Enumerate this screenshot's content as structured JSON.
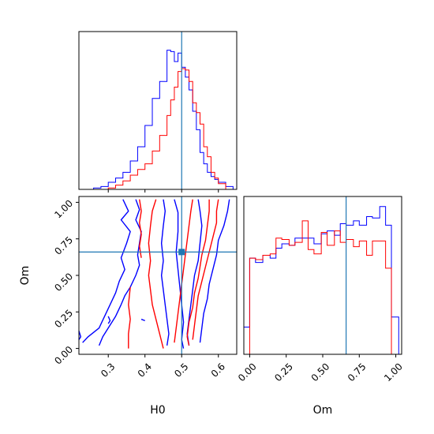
{
  "colors": {
    "series_a": "#0000ff",
    "series_b": "#ff0000",
    "truth": "#1f77b4",
    "frame": "#000000",
    "background": "#ffffff"
  },
  "chart_data": {
    "type": "corner",
    "parameters": [
      "H0",
      "Om"
    ],
    "truth": {
      "H0": 0.5,
      "Om": 0.66
    },
    "axes": {
      "H0": {
        "label": "H0",
        "lim": [
          0.22,
          0.65
        ],
        "ticks": [
          0.3,
          0.4,
          0.5,
          0.6
        ],
        "tick_labels": [
          "0.3",
          "0.4",
          "0.5",
          "0.6"
        ]
      },
      "Om": {
        "label": "Om",
        "lim": [
          -0.04,
          1.04
        ],
        "ticks": [
          0.0,
          0.25,
          0.5,
          0.75,
          1.0
        ],
        "tick_labels": [
          "0.00",
          "0.25",
          "0.50",
          "0.75",
          "1.00"
        ]
      }
    },
    "marginals": [
      {
        "parameter": "H0",
        "hist_ymax": 1.0,
        "series": [
          {
            "color_key": "series_a",
            "edges": [
              0.26,
              0.28,
              0.3,
              0.32,
              0.34,
              0.36,
              0.38,
              0.4,
              0.42,
              0.44,
              0.46,
              0.47,
              0.48,
              0.49,
              0.5,
              0.51,
              0.52,
              0.53,
              0.54,
              0.55,
              0.56,
              0.57,
              0.58,
              0.59,
              0.6,
              0.62,
              0.64
            ],
            "values": [
              0.01,
              0.02,
              0.05,
              0.08,
              0.12,
              0.2,
              0.3,
              0.45,
              0.64,
              0.76,
              0.98,
              0.97,
              0.9,
              0.96,
              0.86,
              0.79,
              0.7,
              0.55,
              0.42,
              0.26,
              0.18,
              0.12,
              0.09,
              0.07,
              0.05,
              0.02
            ]
          },
          {
            "color_key": "series_b",
            "edges": [
              0.3,
              0.32,
              0.34,
              0.36,
              0.38,
              0.4,
              0.42,
              0.44,
              0.46,
              0.47,
              0.48,
              0.49,
              0.5,
              0.51,
              0.52,
              0.53,
              0.54,
              0.55,
              0.56,
              0.57,
              0.58,
              0.59,
              0.6,
              0.62
            ],
            "values": [
              0.01,
              0.03,
              0.06,
              0.1,
              0.14,
              0.18,
              0.27,
              0.38,
              0.52,
              0.63,
              0.72,
              0.83,
              0.85,
              0.84,
              0.76,
              0.61,
              0.54,
              0.46,
              0.3,
              0.23,
              0.12,
              0.08,
              0.04
            ]
          }
        ]
      },
      {
        "parameter": "Om",
        "hist_ymax": 1.0,
        "series": [
          {
            "color_key": "series_a",
            "edges": [
              -0.04,
              0.0,
              0.04,
              0.09,
              0.14,
              0.18,
              0.22,
              0.27,
              0.31,
              0.36,
              0.4,
              0.44,
              0.49,
              0.53,
              0.58,
              0.62,
              0.66,
              0.71,
              0.75,
              0.8,
              0.84,
              0.89,
              0.93,
              0.97,
              1.02
            ],
            "values": [
              0.19,
              0.67,
              0.64,
              0.69,
              0.67,
              0.74,
              0.77,
              0.76,
              0.81,
              0.81,
              0.81,
              0.77,
              0.84,
              0.86,
              0.83,
              0.91,
              0.9,
              0.93,
              0.9,
              0.96,
              0.95,
              1.03,
              0.9,
              0.26
            ]
          },
          {
            "color_key": "series_b",
            "edges": [
              0.0,
              0.04,
              0.09,
              0.14,
              0.18,
              0.22,
              0.27,
              0.31,
              0.36,
              0.4,
              0.44,
              0.49,
              0.53,
              0.58,
              0.62,
              0.66,
              0.71,
              0.75,
              0.8,
              0.84,
              0.89,
              0.93,
              0.97
            ],
            "values": [
              0.67,
              0.66,
              0.69,
              0.7,
              0.81,
              0.8,
              0.76,
              0.78,
              0.93,
              0.73,
              0.7,
              0.85,
              0.76,
              0.86,
              0.78,
              0.8,
              0.75,
              0.79,
              0.69,
              0.79,
              0.79,
              0.6
            ]
          }
        ]
      }
    ],
    "contours": {
      "x_param": "H0",
      "y_param": "Om",
      "lines": [
        {
          "color_key": "series_a",
          "points": [
            [
              0.34,
              1.02
            ],
            [
              0.355,
              0.94
            ],
            [
              0.335,
              0.88
            ],
            [
              0.36,
              0.8
            ],
            [
              0.35,
              0.72
            ],
            [
              0.335,
              0.62
            ],
            [
              0.345,
              0.54
            ],
            [
              0.33,
              0.46
            ],
            [
              0.32,
              0.38
            ],
            [
              0.305,
              0.3
            ],
            [
              0.29,
              0.22
            ],
            [
              0.275,
              0.14
            ],
            [
              0.245,
              0.08
            ],
            [
              0.23,
              0.04
            ]
          ]
        },
        {
          "color_key": "series_a",
          "points": [
            [
              0.22,
              0.12
            ],
            [
              0.225,
              0.08
            ],
            [
              0.22,
              0.06
            ]
          ]
        },
        {
          "color_key": "series_a",
          "points": [
            [
              0.375,
              1.02
            ],
            [
              0.385,
              0.95
            ],
            [
              0.375,
              0.88
            ],
            [
              0.39,
              0.8
            ],
            [
              0.385,
              0.72
            ],
            [
              0.38,
              0.64
            ],
            [
              0.385,
              0.57
            ],
            [
              0.375,
              0.5
            ],
            [
              0.36,
              0.42
            ],
            [
              0.345,
              0.36
            ],
            [
              0.335,
              0.3
            ],
            [
              0.32,
              0.22
            ],
            [
              0.3,
              0.14
            ],
            [
              0.285,
              0.08
            ],
            [
              0.275,
              0.02
            ]
          ]
        },
        {
          "color_key": "series_a",
          "points": [
            [
              0.45,
              1.02
            ],
            [
              0.455,
              0.94
            ],
            [
              0.45,
              0.84
            ],
            [
              0.445,
              0.72
            ],
            [
              0.45,
              0.6
            ],
            [
              0.445,
              0.5
            ],
            [
              0.45,
              0.4
            ],
            [
              0.455,
              0.3
            ],
            [
              0.46,
              0.2
            ],
            [
              0.465,
              0.1
            ],
            [
              0.46,
              0.02
            ]
          ]
        },
        {
          "color_key": "series_a",
          "points": [
            [
              0.48,
              1.02
            ],
            [
              0.49,
              0.93
            ],
            [
              0.49,
              0.8
            ],
            [
              0.485,
              0.66
            ],
            [
              0.49,
              0.54
            ],
            [
              0.495,
              0.42
            ],
            [
              0.5,
              0.3
            ],
            [
              0.505,
              0.18
            ],
            [
              0.5,
              0.06
            ],
            [
              0.505,
              0.0
            ]
          ]
        },
        {
          "color_key": "series_a",
          "points": [
            [
              0.545,
              1.02
            ],
            [
              0.55,
              0.94
            ],
            [
              0.555,
              0.84
            ],
            [
              0.55,
              0.72
            ],
            [
              0.545,
              0.6
            ],
            [
              0.535,
              0.5
            ],
            [
              0.53,
              0.4
            ],
            [
              0.525,
              0.3
            ],
            [
              0.52,
              0.2
            ],
            [
              0.515,
              0.1
            ],
            [
              0.52,
              0.02
            ]
          ]
        },
        {
          "color_key": "series_a",
          "points": [
            [
              0.63,
              1.02
            ],
            [
              0.625,
              0.94
            ],
            [
              0.615,
              0.84
            ],
            [
              0.6,
              0.74
            ],
            [
              0.595,
              0.64
            ],
            [
              0.585,
              0.54
            ],
            [
              0.575,
              0.44
            ],
            [
              0.57,
              0.34
            ],
            [
              0.56,
              0.24
            ],
            [
              0.555,
              0.14
            ],
            [
              0.55,
              0.04
            ]
          ]
        },
        {
          "color_key": "series_a",
          "points": [
            [
              0.3,
              0.22
            ],
            [
              0.305,
              0.19
            ],
            [
              0.3,
              0.17
            ]
          ]
        },
        {
          "color_key": "series_a",
          "points": [
            [
              0.39,
              0.2
            ],
            [
              0.4,
              0.19
            ]
          ]
        },
        {
          "color_key": "series_b",
          "points": [
            [
              0.385,
              1.02
            ],
            [
              0.39,
              0.94
            ],
            [
              0.385,
              0.86
            ],
            [
              0.39,
              0.78
            ],
            [
              0.385,
              0.7
            ],
            [
              0.39,
              0.62
            ]
          ]
        },
        {
          "color_key": "series_b",
          "points": [
            [
              0.36,
              0.42
            ],
            [
              0.355,
              0.3
            ],
            [
              0.36,
              0.2
            ],
            [
              0.355,
              0.1
            ],
            [
              0.355,
              0.0
            ]
          ]
        },
        {
          "color_key": "series_b",
          "points": [
            [
              0.43,
              1.02
            ],
            [
              0.42,
              0.94
            ],
            [
              0.415,
              0.84
            ],
            [
              0.41,
              0.72
            ],
            [
              0.415,
              0.6
            ],
            [
              0.41,
              0.5
            ],
            [
              0.415,
              0.4
            ],
            [
              0.42,
              0.3
            ],
            [
              0.43,
              0.2
            ],
            [
              0.44,
              0.1
            ],
            [
              0.45,
              0.0
            ]
          ]
        },
        {
          "color_key": "series_b",
          "points": [
            [
              0.53,
              1.02
            ],
            [
              0.525,
              0.94
            ],
            [
              0.52,
              0.84
            ],
            [
              0.515,
              0.74
            ],
            [
              0.51,
              0.64
            ],
            [
              0.505,
              0.54
            ],
            [
              0.5,
              0.44
            ],
            [
              0.495,
              0.34
            ],
            [
              0.49,
              0.24
            ],
            [
              0.485,
              0.14
            ],
            [
              0.48,
              0.04
            ]
          ]
        },
        {
          "color_key": "series_b",
          "points": [
            [
              0.575,
              1.02
            ],
            [
              0.575,
              0.94
            ],
            [
              0.57,
              0.84
            ],
            [
              0.565,
              0.74
            ],
            [
              0.555,
              0.64
            ],
            [
              0.55,
              0.56
            ],
            [
              0.545,
              0.48
            ],
            [
              0.535,
              0.38
            ],
            [
              0.53,
              0.28
            ],
            [
              0.52,
              0.18
            ],
            [
              0.515,
              0.08
            ],
            [
              0.52,
              0.02
            ]
          ]
        },
        {
          "color_key": "series_b",
          "points": [
            [
              0.6,
              1.02
            ],
            [
              0.595,
              0.94
            ],
            [
              0.595,
              0.86
            ],
            [
              0.585,
              0.76
            ],
            [
              0.575,
              0.66
            ],
            [
              0.565,
              0.56
            ],
            [
              0.555,
              0.46
            ],
            [
              0.545,
              0.36
            ],
            [
              0.54,
              0.26
            ],
            [
              0.535,
              0.16
            ],
            [
              0.53,
              0.06
            ]
          ]
        }
      ]
    }
  }
}
